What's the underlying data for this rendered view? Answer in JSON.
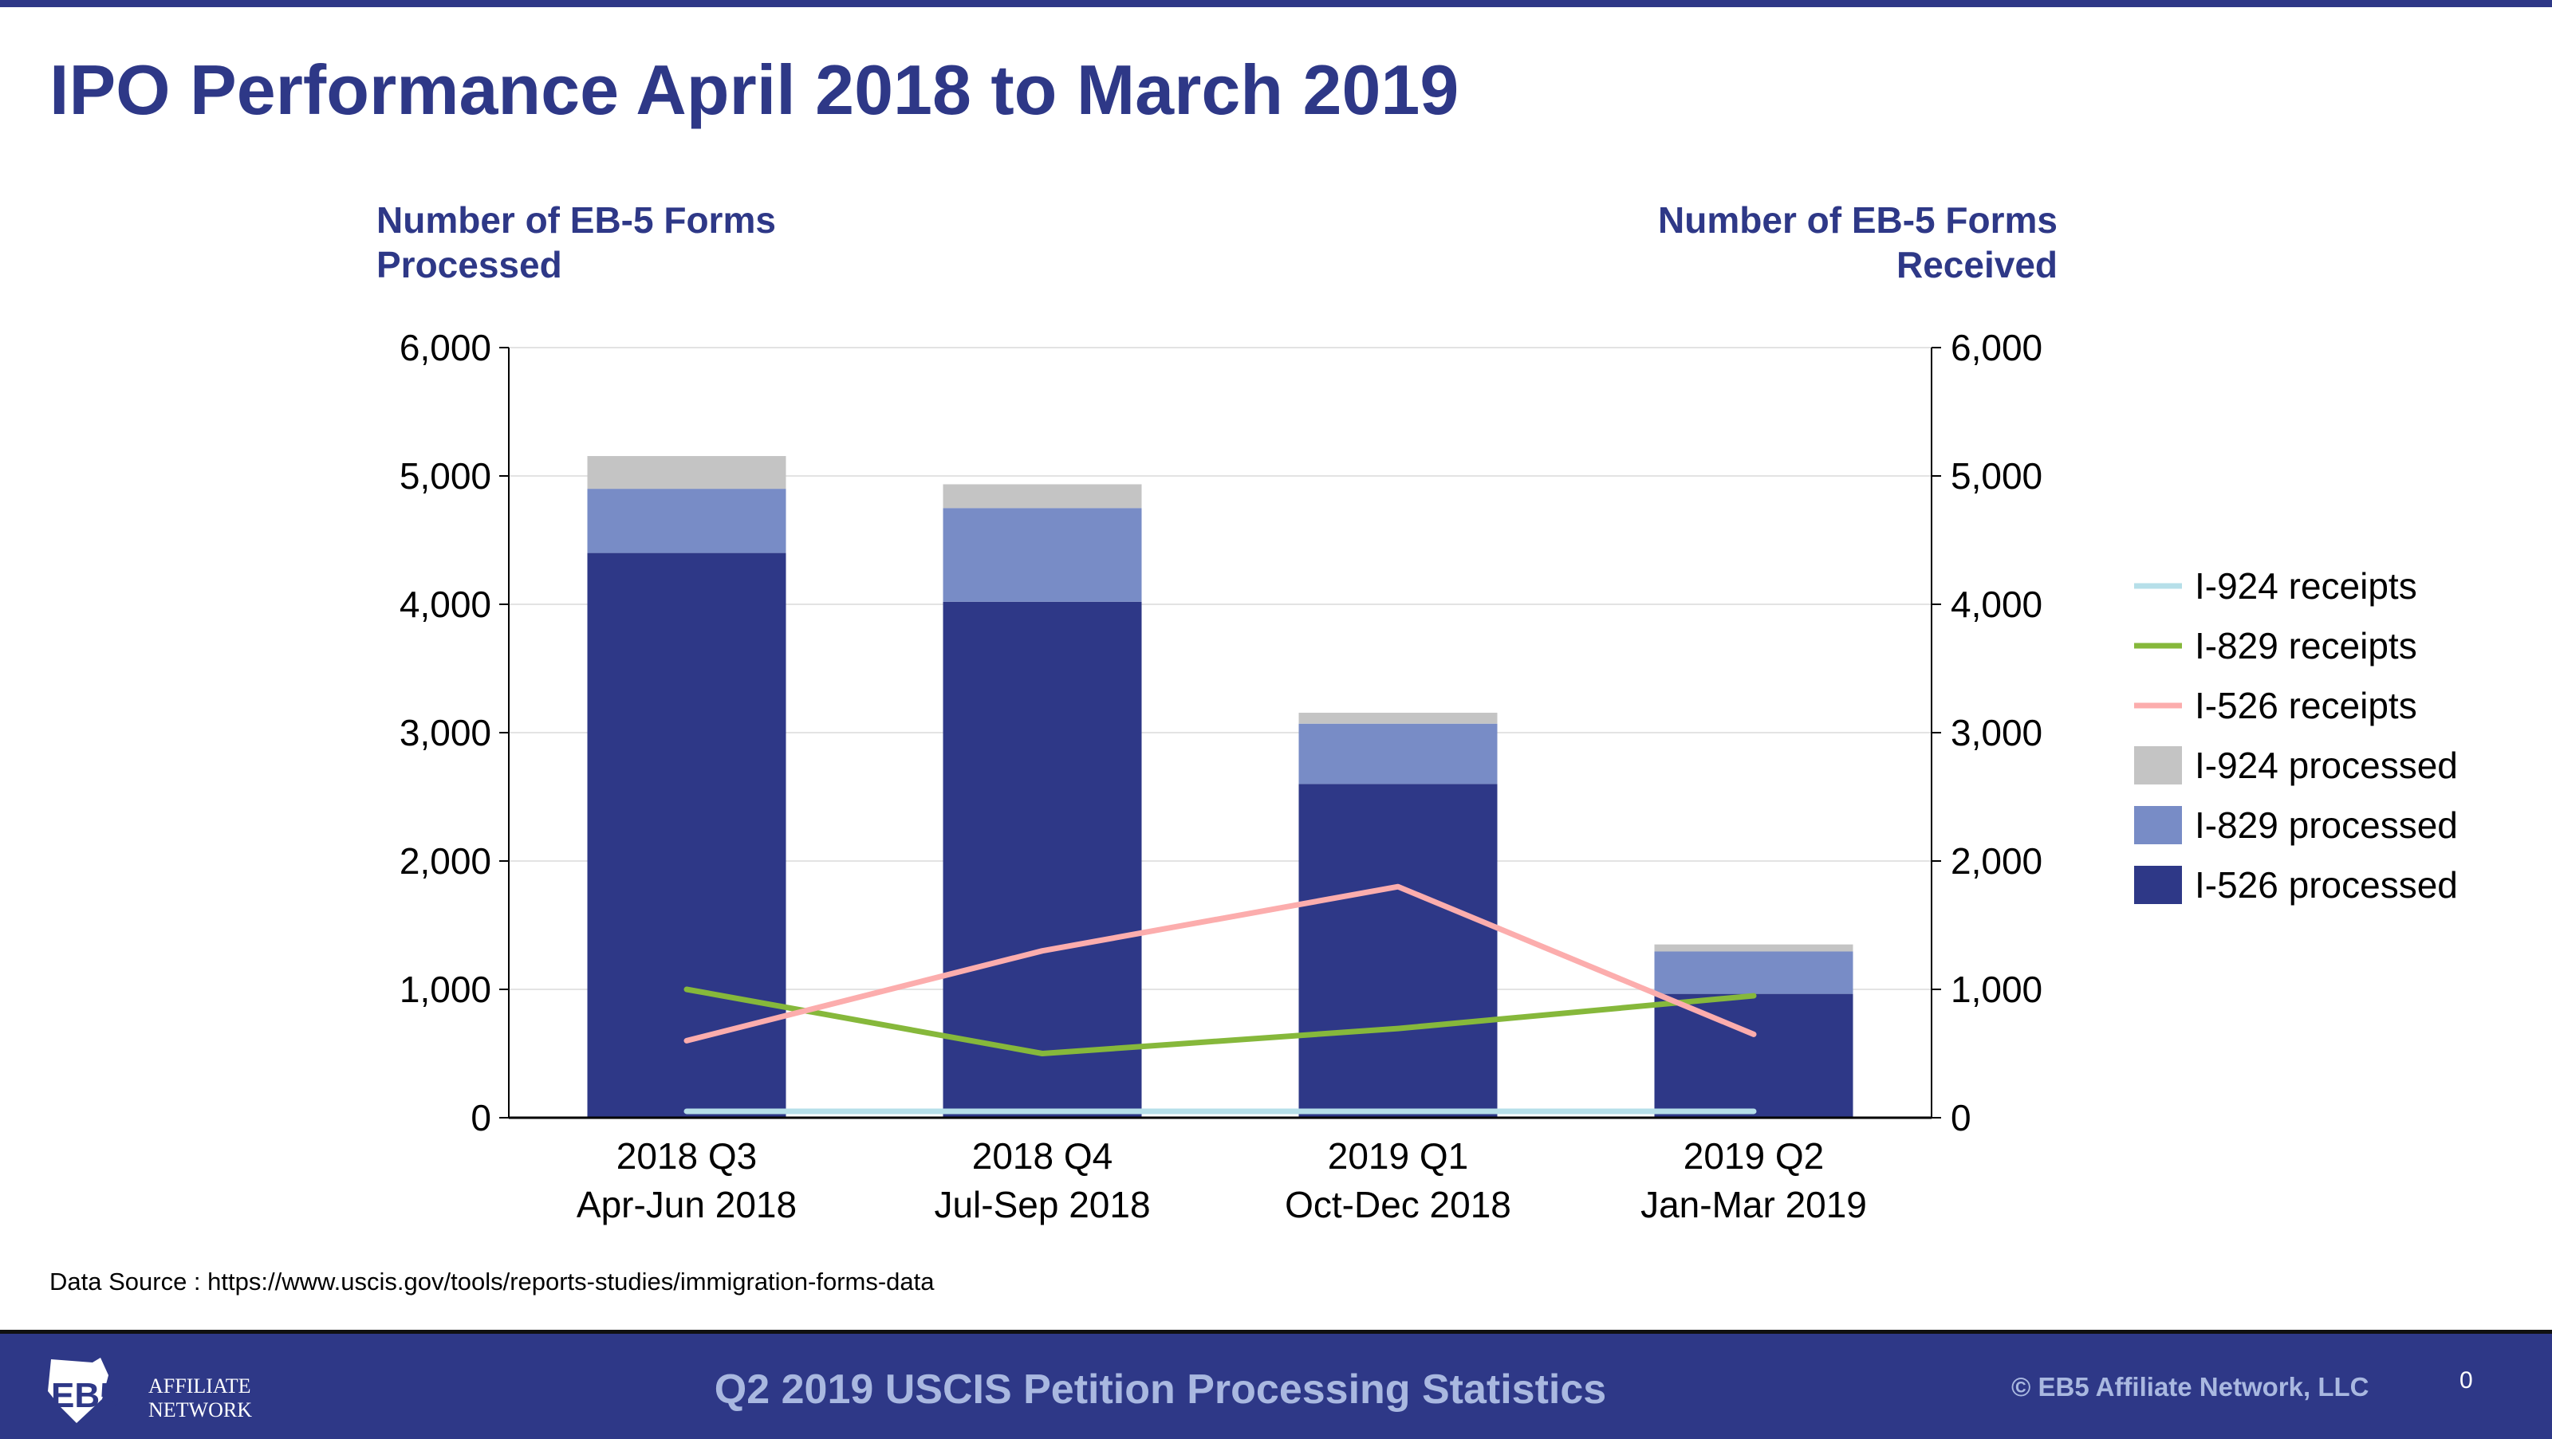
{
  "title": "IPO Performance April 2018 to March 2019",
  "chart_data": {
    "type": "bar",
    "stacked": true,
    "categories": [
      [
        "2018 Q3",
        "Apr-Jun 2018"
      ],
      [
        "2018 Q4",
        "Jul-Sep 2018"
      ],
      [
        "2019 Q1",
        "Oct-Dec 2018"
      ],
      [
        "2019 Q2",
        "Jan-Mar 2019"
      ]
    ],
    "ylabel_left": "Number of EB-5 Forms Processed",
    "ylabel_right": "Number of EB-5 Forms Received",
    "ylim": [
      0,
      6000
    ],
    "y2lim": [
      0,
      6000
    ],
    "yticks": [
      "0",
      "1,000",
      "2,000",
      "3,000",
      "4,000",
      "5,000",
      "6,000"
    ],
    "grid": true,
    "legend_position": "right",
    "bar_series": [
      {
        "name": "I-526 processed",
        "color": "#2e3887",
        "values": [
          4400,
          4020,
          2600,
          965
        ]
      },
      {
        "name": "I-829 processed",
        "color": "#788cc6",
        "values": [
          500,
          730,
          470,
          330
        ]
      },
      {
        "name": "I-924 processed",
        "color": "#c4c4c4",
        "values": [
          255,
          185,
          85,
          55
        ]
      }
    ],
    "line_series": [
      {
        "name": "I-924 receipts",
        "color": "#b6dfe9",
        "axis": "right",
        "values": [
          50,
          50,
          50,
          50
        ]
      },
      {
        "name": "I-829 receipts",
        "color": "#86b83b",
        "axis": "right",
        "values": [
          1000,
          500,
          695,
          950
        ]
      },
      {
        "name": "I-526 receipts",
        "color": "#fcadad",
        "axis": "right",
        "values": [
          600,
          1300,
          1800,
          650
        ]
      }
    ]
  },
  "source": "Data Source : https://www.uscis.gov/tools/reports-studies/immigration-forms-data",
  "footer": {
    "title": "Q2 2019 USCIS Petition Processing Statistics",
    "copyright": "© EB5 Affiliate Network, LLC",
    "page_number": "0",
    "logo_text": "EB5 AFFILIATE NETWORK"
  }
}
